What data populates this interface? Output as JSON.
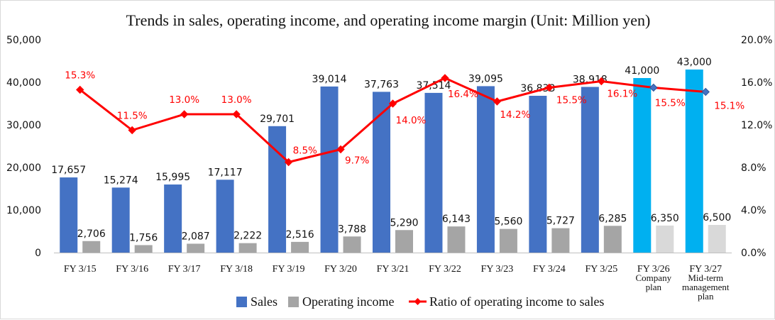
{
  "chart_data": {
    "type": "bar",
    "title": "Trends in sales, operating income, and operating income margin (Unit: Million yen)",
    "categories": [
      [
        "FY 3/15"
      ],
      [
        "FY 3/16"
      ],
      [
        "FY 3/17"
      ],
      [
        "FY 3/18"
      ],
      [
        "FY 3/19"
      ],
      [
        "FY 3/20"
      ],
      [
        "FY 3/21"
      ],
      [
        "FY 3/22"
      ],
      [
        "FY 3/23"
      ],
      [
        "FY 3/24"
      ],
      [
        "FY 3/25"
      ],
      [
        "FY 3/26",
        "Company",
        "plan"
      ],
      [
        "FY 3/27",
        "Mid-term",
        "management",
        "plan"
      ]
    ],
    "series": [
      {
        "name": "Sales",
        "type": "bar",
        "values": [
          17657,
          15274,
          15995,
          17117,
          29701,
          39014,
          37763,
          37514,
          39095,
          36833,
          38918,
          41000,
          43000
        ],
        "labels": [
          "17,657",
          "15,274",
          "15,995",
          "17,117",
          "29,701",
          "39,014",
          "37,763",
          "37,514",
          "39,095",
          "36,833",
          "38,918",
          "41,000",
          "43,000"
        ],
        "color": "#4472c4",
        "plan_color": "#00b0f0"
      },
      {
        "name": "Operating income",
        "type": "bar",
        "values": [
          2706,
          1756,
          2087,
          2222,
          2516,
          3788,
          5290,
          6143,
          5560,
          5727,
          6285,
          6350,
          6500
        ],
        "labels": [
          "2,706",
          "1,756",
          "2,087",
          "2,222",
          "2,516",
          "3,788",
          "5,290",
          "6,143",
          "5,560",
          "5,727",
          "6,285",
          "6,350",
          "6,500"
        ],
        "color": "#a5a5a5",
        "plan_color": "#d9d9d9"
      },
      {
        "name": "Ratio of operating income to sales",
        "type": "line",
        "axis": "right",
        "values": [
          15.3,
          11.5,
          13.0,
          13.0,
          8.5,
          9.7,
          14.0,
          16.4,
          14.2,
          15.5,
          16.1,
          15.5,
          15.1
        ],
        "labels": [
          "15.3%",
          "11.5%",
          "13.0%",
          "13.0%",
          "8.5%",
          "9.7%",
          "14.0%",
          "16.4%",
          "14.2%",
          "15.5%",
          "16.1%",
          "15.5%",
          "15.1%"
        ],
        "color": "#ff0000",
        "plan_marker_color": "#4472c4"
      }
    ],
    "plan_count": 2,
    "ylim": [
      0,
      50000
    ],
    "yticks": [
      "0",
      "10,000",
      "20,000",
      "30,000",
      "40,000",
      "50,000"
    ],
    "y2lim": [
      0,
      20
    ],
    "y2ticks": [
      "0.0%",
      "4.0%",
      "8.0%",
      "12.0%",
      "16.0%",
      "20.0%"
    ],
    "grid": false,
    "legend": "bottom-center"
  }
}
